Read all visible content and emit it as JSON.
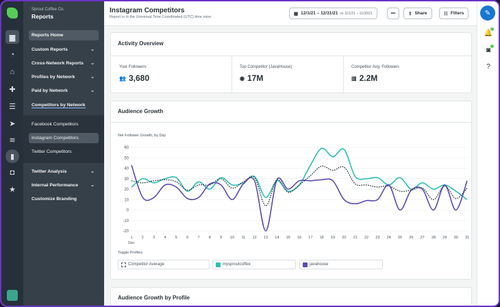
{
  "sidebar": {
    "org": "Sprout Coffee Co.",
    "section": "Reports",
    "items": [
      {
        "label": "Reports Home"
      },
      {
        "label": "Custom Reports"
      },
      {
        "label": "Cross-Network Reports"
      },
      {
        "label": "Profiles by Network"
      },
      {
        "label": "Paid by Network"
      },
      {
        "label": "Competitors by Network"
      },
      {
        "label": "Facebook Competitors"
      },
      {
        "label": "Instagram Competitors"
      },
      {
        "label": "Twitter Competitors"
      },
      {
        "label": "Twitter Analysis"
      },
      {
        "label": "Internal Performance"
      },
      {
        "label": "Customize Branding"
      }
    ]
  },
  "header": {
    "title": "Instagram Competitors",
    "subtitle": "Report is in the Universal Time Coordinated (UTC) time zone",
    "date_range": "12/1/21 – 12/31/21",
    "compare": "vs 11/1/21 – 11/30/21",
    "more": "•••",
    "share": "Share",
    "filters": "Filters"
  },
  "activity": {
    "title": "Activity Overview",
    "stats": [
      {
        "label": "Your Followers",
        "value": "3,680"
      },
      {
        "label": "Top Competitor (JavaHouse)",
        "value": "17M"
      },
      {
        "label": "Competitor Avg. Followers",
        "value": "2.2M"
      }
    ]
  },
  "growth": {
    "title": "Audience Growth",
    "toggle_title": "Toggle Profiles",
    "toggles": [
      {
        "label": "Competitor Average",
        "color": "#46535c"
      },
      {
        "label": "mysproutcoffee",
        "color": "#2bbfb2"
      },
      {
        "label": "javahouse",
        "color": "#5b4bb0"
      }
    ]
  },
  "by_profile": {
    "title": "Audience Growth by Profile"
  },
  "chart_data": {
    "type": "line",
    "title": "Net Follower Growth, by Day",
    "xlabel": "",
    "ylabel": "",
    "x": [
      1,
      2,
      3,
      4,
      5,
      6,
      7,
      8,
      9,
      10,
      11,
      12,
      13,
      14,
      15,
      16,
      17,
      18,
      19,
      20,
      21,
      22,
      23,
      24,
      25,
      26,
      27,
      28,
      29,
      30,
      31
    ],
    "x_sub_label": "Dec",
    "ylim": [
      -20,
      60
    ],
    "yticks": [
      60,
      50,
      40,
      30,
      20,
      10,
      0,
      -10,
      -20
    ],
    "grid": true,
    "series": [
      {
        "name": "mysproutcoffee",
        "color": "#2bbfb2",
        "values": [
          22,
          30,
          26,
          30,
          31,
          18,
          27,
          20,
          31,
          24,
          26,
          32,
          12,
          28,
          18,
          24,
          43,
          59,
          51,
          58,
          32,
          30,
          31,
          24,
          31,
          20,
          26,
          20,
          24,
          18,
          10
        ]
      },
      {
        "name": "javahouse",
        "color": "#5b4bb0",
        "values": [
          43,
          12,
          12,
          24,
          22,
          11,
          12,
          25,
          24,
          10,
          25,
          28,
          -20,
          29,
          20,
          28,
          28,
          29,
          28,
          10,
          6,
          9,
          10,
          24,
          0,
          19,
          20,
          0,
          24,
          0,
          28
        ]
      },
      {
        "name": "Competitor Average",
        "color": "#1f2a30",
        "dashed": true,
        "values": [
          28,
          26,
          28,
          29,
          27,
          19,
          24,
          24,
          30,
          21,
          27,
          31,
          4,
          29,
          17,
          24,
          33,
          42,
          38,
          41,
          25,
          24,
          22,
          23,
          18,
          19,
          21,
          10,
          23,
          11,
          21
        ]
      }
    ]
  }
}
